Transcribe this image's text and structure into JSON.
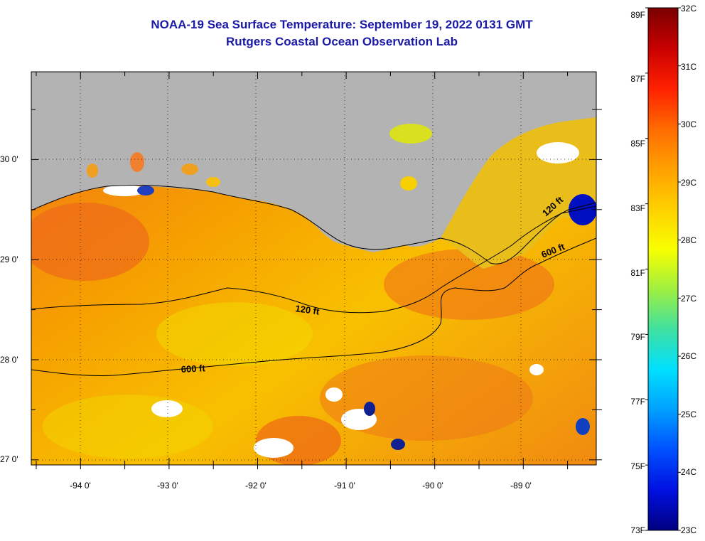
{
  "header": {
    "title_line1": "NOAA-19 Sea Surface Temperature:  September 19, 2022 0131 GMT",
    "title_line2": "Rutgers Coastal Ocean Observation Lab"
  },
  "map": {
    "y_axis": [
      {
        "label": "30 0'",
        "value": 30
      },
      {
        "label": "29 0'",
        "value": 29
      },
      {
        "label": "28 0'",
        "value": 28
      },
      {
        "label": "27 0'",
        "value": 27
      }
    ],
    "x_axis": [
      {
        "label": "-94 0'",
        "value": -94
      },
      {
        "label": "-93 0'",
        "value": -93
      },
      {
        "label": "-92 0'",
        "value": -92
      },
      {
        "label": "-91 0'",
        "value": -91
      },
      {
        "label": "-90 0'",
        "value": -90
      },
      {
        "label": "-89 0'",
        "value": -89
      }
    ],
    "contour_labels": [
      "120 ft",
      "600 ft",
      "120 ft",
      "600 ft"
    ],
    "colors": {
      "land": "#b3b3b3",
      "cloud": "#ffffff",
      "sea_warm": "#f07818",
      "sea_mid": "#f6b400",
      "grid": "#000000"
    }
  },
  "colorbar": {
    "fahrenheit": [
      "89F",
      "87F",
      "85F",
      "83F",
      "81F",
      "79F",
      "77F",
      "75F",
      "73F"
    ],
    "celsius": [
      "32C",
      "31C",
      "30C",
      "29C",
      "28C",
      "27C",
      "26C",
      "25C",
      "24C",
      "23C"
    ],
    "gradient": [
      "#7a0000",
      "#c80000",
      "#ff2000",
      "#ff6a00",
      "#ffa000",
      "#ffd000",
      "#f8ff00",
      "#a0f040",
      "#40e0a0",
      "#00e0ff",
      "#00a0ff",
      "#0050ff",
      "#0010e0",
      "#000080"
    ]
  }
}
